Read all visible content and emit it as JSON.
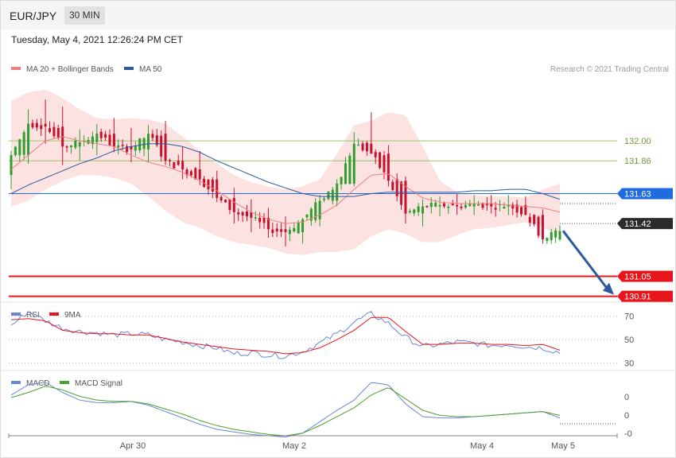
{
  "header": {
    "symbol": "EUR/JPY",
    "timeframe": "30 MIN"
  },
  "timestamp": "Tuesday, May 4, 2021 12:26:24 PM CET",
  "copyright": "Research © 2021 Trading Central",
  "colors": {
    "up": "#2e9e2e",
    "down": "#c8102e",
    "ma20": "#f08080",
    "bands_fill": "#fde2e2",
    "ma50": "#2c5aa0",
    "support": "#e8151b",
    "resistance": "#9bc46b",
    "pivot": "#1f6be0",
    "last": "#2b2b2b",
    "arrow": "#2c5a9c",
    "rsi": "#6b86d6",
    "rsi_ma": "#e8151b",
    "macd": "#6b86d6",
    "signal": "#4aa02c"
  },
  "chart_data": [
    {
      "type": "candlestick",
      "title": "EUR/JPY",
      "legend": [
        "MA 20 + Bollinger Bands",
        "MA 50"
      ],
      "legend_placement": "top-left",
      "x_labels": [
        "Apr 30",
        "May 2",
        "May 4",
        "May 5"
      ],
      "ylim": [
        130.88,
        132.43
      ],
      "levels": [
        {
          "label": "132.00",
          "value": 132.0,
          "kind": "resistance"
        },
        {
          "label": "131.86",
          "value": 131.86,
          "kind": "resistance"
        },
        {
          "label": "131.63",
          "value": 131.63,
          "kind": "pivot"
        },
        {
          "label": "131.42",
          "value": 131.42,
          "kind": "last"
        },
        {
          "label": "131.05",
          "value": 131.05,
          "kind": "support"
        },
        {
          "label": "130.91",
          "value": 130.91,
          "kind": "support"
        }
      ],
      "anchors": [
        [
          131.76,
          131.93,
          131.66,
          131.9
        ],
        [
          131.9,
          132.22,
          131.84,
          132.12
        ],
        [
          132.12,
          132.29,
          131.98,
          132.1
        ],
        [
          132.1,
          132.24,
          131.83,
          131.96
        ],
        [
          131.96,
          132.08,
          131.86,
          131.99
        ],
        [
          131.99,
          132.12,
          131.9,
          132.05
        ],
        [
          132.05,
          132.16,
          131.92,
          131.96
        ],
        [
          131.96,
          132.09,
          131.85,
          131.94
        ],
        [
          131.94,
          132.11,
          131.85,
          132.05
        ],
        [
          132.05,
          132.14,
          131.83,
          131.86
        ],
        [
          131.86,
          131.96,
          131.73,
          131.8
        ],
        [
          131.8,
          131.93,
          131.69,
          131.73
        ],
        [
          131.73,
          131.79,
          131.57,
          131.6
        ],
        [
          131.6,
          131.67,
          131.42,
          131.5
        ],
        [
          131.5,
          131.59,
          131.36,
          131.46
        ],
        [
          131.46,
          131.53,
          131.32,
          131.38
        ],
        [
          131.38,
          131.47,
          131.26,
          131.36
        ],
        [
          131.36,
          131.46,
          131.28,
          131.45
        ],
        [
          131.45,
          131.62,
          131.4,
          131.58
        ],
        [
          131.58,
          131.73,
          131.54,
          131.7
        ],
        [
          131.7,
          132.06,
          131.68,
          131.98
        ],
        [
          131.98,
          132.2,
          131.91,
          131.91
        ],
        [
          131.91,
          131.97,
          131.68,
          131.72
        ],
        [
          131.72,
          131.75,
          131.42,
          131.49
        ],
        [
          131.49,
          131.59,
          131.4,
          131.54
        ],
        [
          131.54,
          131.61,
          131.47,
          131.55
        ],
        [
          131.55,
          131.63,
          131.48,
          131.54
        ],
        [
          131.54,
          131.62,
          131.48,
          131.56
        ],
        [
          131.56,
          131.62,
          131.49,
          131.54
        ],
        [
          131.54,
          131.62,
          131.48,
          131.55
        ],
        [
          131.55,
          131.61,
          131.48,
          131.48
        ],
        [
          131.48,
          131.52,
          131.28,
          131.31
        ],
        [
          131.31,
          131.4,
          131.24,
          131.38
        ]
      ],
      "anchor_label": "candle values sampled at regular intervals across the chart: [open, high, low, close]",
      "ma20": [
        131.8,
        131.9,
        132.0,
        132.03,
        132.0,
        131.98,
        131.96,
        131.9,
        131.85,
        131.82,
        131.78,
        131.72,
        131.65,
        131.57,
        131.5,
        131.45,
        131.42,
        131.43,
        131.48,
        131.55,
        131.66,
        131.76,
        131.77,
        131.68,
        131.6,
        131.57,
        131.56,
        131.56,
        131.56,
        131.55,
        131.54,
        131.53,
        131.5
      ],
      "ma50": [
        131.63,
        131.69,
        131.74,
        131.79,
        131.84,
        131.88,
        131.93,
        131.96,
        131.98,
        131.98,
        131.96,
        131.92,
        131.86,
        131.81,
        131.76,
        131.71,
        131.67,
        131.63,
        131.61,
        131.61,
        131.61,
        131.63,
        131.64,
        131.64,
        131.64,
        131.64,
        131.64,
        131.65,
        131.65,
        131.66,
        131.66,
        131.63,
        131.59
      ],
      "bb_upper": [
        132.28,
        132.34,
        132.36,
        132.3,
        132.22,
        132.16,
        132.15,
        132.16,
        132.15,
        132.12,
        132.03,
        131.93,
        131.84,
        131.76,
        131.71,
        131.68,
        131.66,
        131.68,
        131.73,
        131.91,
        132.11,
        132.14,
        132.2,
        132.18,
        131.96,
        131.72,
        131.64,
        131.62,
        131.61,
        131.61,
        131.6,
        131.66,
        131.7
      ],
      "bb_lower": [
        131.54,
        131.58,
        131.66,
        131.72,
        131.76,
        131.76,
        131.74,
        131.7,
        131.61,
        131.51,
        131.43,
        131.39,
        131.33,
        131.29,
        131.27,
        131.25,
        131.21,
        131.2,
        131.22,
        131.22,
        131.24,
        131.33,
        131.38,
        131.35,
        131.29,
        131.29,
        131.34,
        131.38,
        131.39,
        131.41,
        131.43,
        131.39,
        131.34
      ],
      "forecast_arrow": {
        "from": 131.38,
        "to": 130.91,
        "direction": "down"
      }
    },
    {
      "type": "line",
      "title": "RSI",
      "legend": [
        "RSI",
        "9MA"
      ],
      "y_ticks": [
        "70",
        "50",
        "30"
      ],
      "ylim": [
        25,
        80
      ],
      "rsi": [
        62,
        74,
        66,
        60,
        57,
        56,
        54,
        55,
        54,
        50,
        48,
        45,
        43,
        38,
        39,
        37,
        36,
        40,
        47,
        55,
        65,
        72,
        64,
        52,
        44,
        46,
        48,
        47,
        45,
        46,
        44,
        43,
        39
      ],
      "rsi_ma": [
        67,
        68,
        66,
        58,
        56,
        55,
        55,
        54,
        54,
        51,
        48,
        46,
        44,
        42,
        41,
        40,
        38,
        39,
        43,
        50,
        58,
        69,
        69,
        57,
        46,
        46,
        47,
        47,
        46,
        46,
        45,
        46,
        41
      ]
    },
    {
      "type": "line",
      "title": "MACD",
      "legend": [
        "MACD",
        "MACD Signal"
      ],
      "y_ticks": [
        "0",
        "0",
        "-0"
      ],
      "ylim": [
        -0.2,
        0.3
      ],
      "macd": [
        0.12,
        0.2,
        0.22,
        0.14,
        0.08,
        0.06,
        0.06,
        0.07,
        0.04,
        -0.01,
        -0.06,
        -0.11,
        -0.15,
        -0.17,
        -0.19,
        -0.2,
        -0.21,
        -0.18,
        -0.09,
        0.0,
        0.08,
        0.22,
        0.2,
        0.05,
        -0.05,
        -0.06,
        -0.06,
        -0.05,
        -0.04,
        -0.03,
        -0.02,
        -0.01,
        -0.06
      ],
      "signal": [
        0.1,
        0.14,
        0.19,
        0.16,
        0.11,
        0.08,
        0.07,
        0.07,
        0.05,
        0.01,
        -0.03,
        -0.08,
        -0.12,
        -0.15,
        -0.17,
        -0.19,
        -0.2,
        -0.18,
        -0.12,
        -0.05,
        0.02,
        0.12,
        0.18,
        0.09,
        0.0,
        -0.04,
        -0.05,
        -0.05,
        -0.04,
        -0.03,
        -0.02,
        -0.01,
        -0.04
      ]
    }
  ]
}
